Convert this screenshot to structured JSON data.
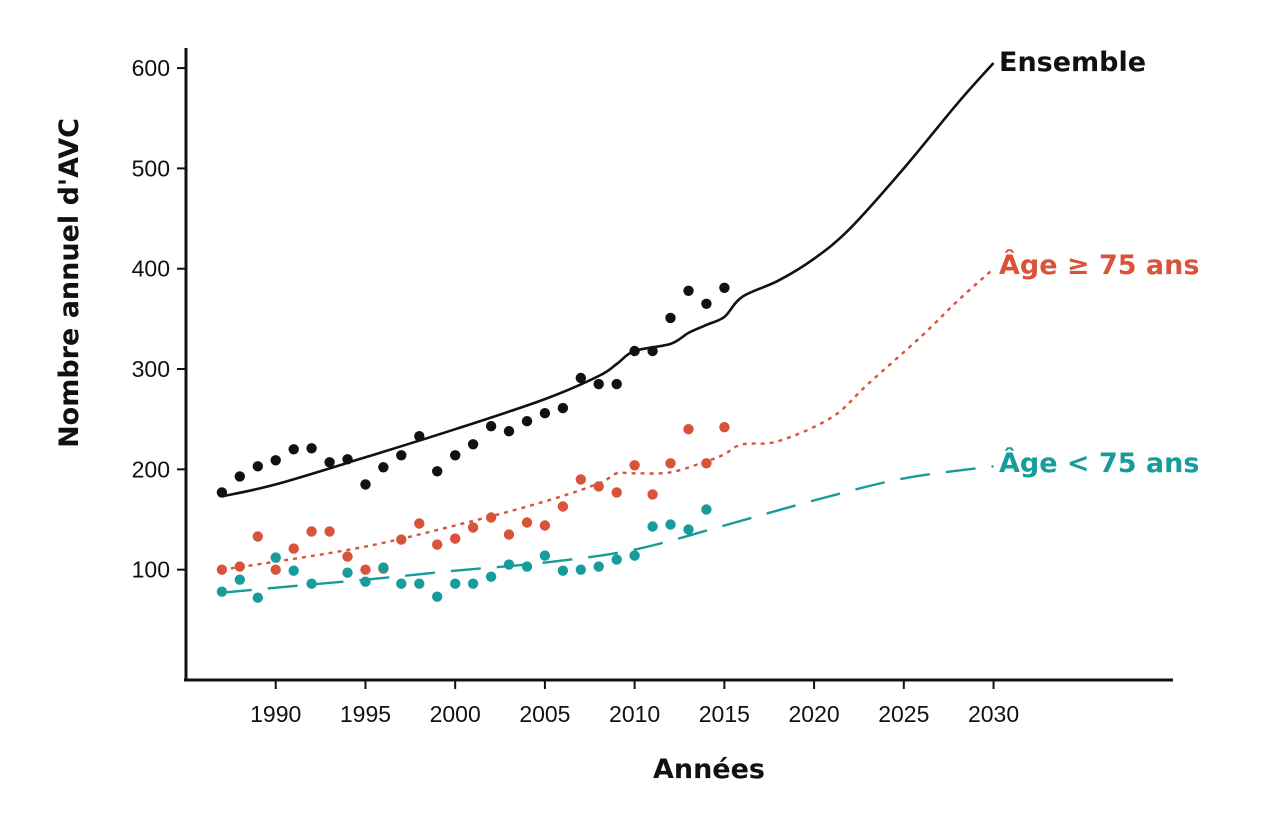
{
  "chart_data": {
    "type": "line",
    "xlabel": "Années",
    "ylabel": "Nombre annuel d'AVC",
    "xlim": [
      1985,
      2040
    ],
    "ylim": [
      -10,
      620
    ],
    "x_ticks": [
      1990,
      1995,
      2000,
      2005,
      2010,
      2015,
      2020,
      2025,
      2030
    ],
    "y_ticks": [
      100,
      200,
      300,
      400,
      500,
      600
    ],
    "grid": false,
    "legend": "labels at right end of lines",
    "series": [
      {
        "name": "Ensemble",
        "color": "#111111",
        "line_style": "solid",
        "points_x": [
          1987,
          1988,
          1989,
          1990,
          1991,
          1992,
          1993,
          1994,
          1995,
          1996,
          1997,
          1998,
          1999,
          2000,
          2001,
          2002,
          2003,
          2004,
          2005,
          2006,
          2007,
          2008,
          2009,
          2010,
          2011,
          2012,
          2013,
          2014,
          2015
        ],
        "points_y": [
          177,
          193,
          203,
          209,
          220,
          221,
          207,
          210,
          185,
          202,
          214,
          233,
          198,
          214,
          225,
          243,
          238,
          248,
          256,
          261,
          291,
          285,
          285,
          318,
          318,
          351,
          378,
          365,
          381
        ],
        "trend_x": [
          1987,
          1990,
          1995,
          2000,
          2005,
          2008,
          2009,
          2010,
          2012,
          2013,
          2014,
          2015,
          2016,
          2018,
          2020,
          2022,
          2025,
          2028,
          2030
        ],
        "trend_y": [
          173,
          185,
          212,
          240,
          270,
          293,
          305,
          318,
          325,
          336,
          344,
          352,
          372,
          388,
          410,
          440,
          500,
          565,
          605
        ]
      },
      {
        "name": "Âge ≥ 75 ans",
        "color": "#d8533a",
        "line_style": "dotted",
        "points_x": [
          1987,
          1988,
          1989,
          1990,
          1991,
          1992,
          1993,
          1994,
          1995,
          1996,
          1997,
          1998,
          1999,
          2000,
          2001,
          2002,
          2003,
          2004,
          2005,
          2006,
          2007,
          2008,
          2009,
          2010,
          2011,
          2012,
          2013,
          2014,
          2015
        ],
        "points_y": [
          100,
          103,
          133,
          100,
          121,
          138,
          138,
          113,
          100,
          101,
          130,
          146,
          125,
          131,
          142,
          152,
          135,
          147,
          144,
          163,
          190,
          183,
          177,
          204,
          175,
          206,
          240,
          206,
          242
        ],
        "trend_x": [
          1987,
          1990,
          1995,
          2000,
          2005,
          2008,
          2009,
          2010,
          2012,
          2014,
          2015,
          2016,
          2018,
          2021,
          2023,
          2026,
          2028,
          2030
        ],
        "trend_y": [
          100,
          108,
          123,
          144,
          168,
          186,
          196,
          196,
          197,
          208,
          215,
          225,
          228,
          252,
          285,
          333,
          368,
          400
        ]
      },
      {
        "name": "Âge < 75 ans",
        "color": "#169c9a",
        "line_style": "dashed",
        "points_x": [
          1987,
          1988,
          1989,
          1990,
          1991,
          1992,
          1994,
          1995,
          1996,
          1997,
          1998,
          1999,
          2000,
          2001,
          2002,
          2003,
          2004,
          2005,
          2006,
          2007,
          2008,
          2009,
          2010,
          2011,
          2012,
          2013,
          2014
        ],
        "points_y": [
          78,
          90,
          72,
          112,
          99,
          86,
          97,
          88,
          102,
          86,
          86,
          73,
          86,
          86,
          93,
          105,
          103,
          114,
          99,
          100,
          103,
          110,
          114,
          143,
          145,
          140,
          160
        ],
        "trend_x": [
          1987,
          1990,
          1995,
          2000,
          2005,
          2010,
          2015,
          2020,
          2025,
          2030
        ],
        "trend_y": [
          77,
          82,
          90,
          99,
          107,
          120,
          144,
          169,
          191,
          203
        ]
      }
    ]
  }
}
